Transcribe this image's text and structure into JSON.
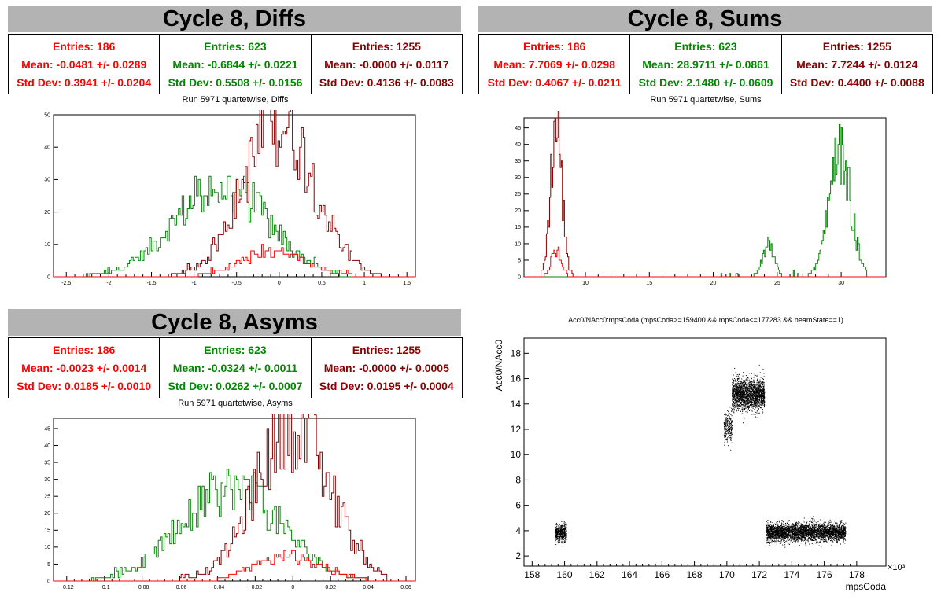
{
  "colors": {
    "red": "#ff0000",
    "green": "#008800",
    "darkred": "#8b0000",
    "header": "#b3b3b3"
  },
  "panels": {
    "diffs": {
      "title": "Cycle 8, Diffs",
      "plot_title": "Run 5971 quartetwise, Diffs",
      "stats": [
        {
          "entries": "Entries: 186",
          "mean": "Mean: -0.0481 +/- 0.0289",
          "std": "Std Dev: 0.3941 +/- 0.0204",
          "color": "#ff0000"
        },
        {
          "entries": "Entries: 623",
          "mean": "Mean: -0.6844 +/- 0.0221",
          "std": "Std Dev: 0.5508 +/- 0.0156",
          "color": "#008800"
        },
        {
          "entries": "Entries: 1255",
          "mean": "Mean: -0.0000 +/- 0.0117",
          "std": "Std Dev: 0.4136 +/- 0.0083",
          "color": "#8b0000"
        }
      ]
    },
    "sums": {
      "title": "Cycle 8, Sums",
      "plot_title": "Run 5971 quartetwise, Sums",
      "stats": [
        {
          "entries": "Entries: 186",
          "mean": "Mean: 7.7069 +/- 0.0298",
          "std": "Std Dev: 0.4067 +/- 0.0211",
          "color": "#ff0000"
        },
        {
          "entries": "Entries: 623",
          "mean": "Mean: 28.9711 +/- 0.0861",
          "std": "Std Dev: 2.1480 +/- 0.0609",
          "color": "#008800"
        },
        {
          "entries": "Entries: 1255",
          "mean": "Mean: 7.7244 +/- 0.0124",
          "std": "Std Dev: 0.4400 +/- 0.0088",
          "color": "#8b0000"
        }
      ]
    },
    "asyms": {
      "title": "Cycle 8, Asyms",
      "plot_title": "Run 5971 quartetwise, Asyms",
      "stats": [
        {
          "entries": "Entries: 186",
          "mean": "Mean: -0.0023 +/- 0.0014",
          "std": "Std Dev: 0.0185 +/- 0.0010",
          "color": "#ff0000"
        },
        {
          "entries": "Entries: 623",
          "mean": "Mean: -0.0324 +/- 0.0011",
          "std": "Std Dev: 0.0262 +/- 0.0007",
          "color": "#008800"
        },
        {
          "entries": "Entries: 1255",
          "mean": "Mean: -0.0000 +/- 0.0005",
          "std": "Std Dev: 0.0195 +/- 0.0004",
          "color": "#8b0000"
        }
      ]
    },
    "scatter": {
      "plot_title": "Acc0/NAcc0:mpsCoda (mpsCoda>=159400 && mpsCoda<=177283 && beamState==1)"
    }
  },
  "chart_data": [
    {
      "type": "histogram",
      "name": "diffs",
      "xlim": [
        -2.65,
        1.6
      ],
      "ylim": [
        0,
        50
      ],
      "xticks": [
        -2.5,
        -2,
        -1.5,
        -1,
        -0.5,
        0,
        0.5,
        1,
        1.5
      ],
      "xtick_labels": [
        "-2.5",
        "-2",
        "-1.5",
        "-1",
        "-0.5",
        "0",
        "0.5",
        "1",
        "1.5"
      ],
      "yticks": [
        0,
        10,
        20,
        30,
        40,
        50
      ],
      "ytick_labels": [
        "0",
        "10",
        "20",
        "30",
        "40",
        "50"
      ],
      "series": [
        {
          "color": "#008800",
          "mean": -0.6844,
          "std": 0.5508,
          "peak": 28,
          "range": [
            -2.5,
            0.7
          ]
        },
        {
          "color": "#8b0000",
          "mean": 0.0,
          "std": 0.4136,
          "peak": 48,
          "range": [
            -1.3,
            1.2
          ]
        },
        {
          "color": "#ff0000",
          "mean": -0.0481,
          "std": 0.3941,
          "peak": 7,
          "range": [
            -1.0,
            0.9
          ]
        }
      ]
    },
    {
      "type": "histogram",
      "name": "sums",
      "xlim": [
        5.2,
        33.5
      ],
      "ylim": [
        0,
        48
      ],
      "xticks": [
        10,
        15,
        20,
        25,
        30
      ],
      "xtick_labels": [
        "10",
        "15",
        "20",
        "25",
        "30"
      ],
      "yticks": [
        0,
        5,
        10,
        15,
        20,
        25,
        30,
        35,
        40,
        45
      ],
      "ytick_labels": [
        "0",
        "5",
        "10",
        "15",
        "20",
        "25",
        "30",
        "35",
        "40",
        "45"
      ],
      "series": [
        {
          "color": "#008800",
          "peaks": [
            {
              "mean": 24.3,
              "std": 0.45,
              "peak": 10
            },
            {
              "mean": 29.9,
              "std": 0.85,
              "peak": 37
            }
          ],
          "range": [
            20,
            32
          ]
        },
        {
          "color": "#8b0000",
          "mean": 7.7244,
          "std": 0.44,
          "peak": 46,
          "range": [
            6.5,
            9.2
          ]
        },
        {
          "color": "#ff0000",
          "mean": 7.7069,
          "std": 0.4067,
          "peak": 8,
          "range": [
            6.8,
            8.6
          ]
        }
      ]
    },
    {
      "type": "histogram",
      "name": "asyms",
      "xlim": [
        -0.127,
        0.065
      ],
      "ylim": [
        0,
        48
      ],
      "xticks": [
        -0.12,
        -0.1,
        -0.08,
        -0.06,
        -0.04,
        -0.02,
        0,
        0.02,
        0.04,
        0.06
      ],
      "xtick_labels": [
        "−0.12",
        "−0.1",
        "−0.08",
        "−0.06",
        "−0.04",
        "−0.02",
        "0",
        "0.02",
        "0.04",
        "0.06"
      ],
      "yticks": [
        0,
        5,
        10,
        15,
        20,
        25,
        30,
        35,
        40,
        45
      ],
      "ytick_labels": [
        "0",
        "5",
        "10",
        "15",
        "20",
        "25",
        "30",
        "35",
        "40",
        "45"
      ],
      "series": [
        {
          "color": "#008800",
          "mean": -0.0324,
          "std": 0.0262,
          "peak": 27,
          "range": [
            -0.12,
            0.04
          ]
        },
        {
          "color": "#8b0000",
          "mean": 0.0,
          "std": 0.0195,
          "peak": 46,
          "range": [
            -0.06,
            0.05
          ]
        },
        {
          "color": "#ff0000",
          "mean": -0.0023,
          "std": 0.0185,
          "peak": 7,
          "range": [
            -0.04,
            0.04
          ]
        }
      ]
    },
    {
      "type": "scatter",
      "name": "acc0-vs-mpscoda",
      "xlabel": "mpsCoda",
      "ylabel": "Acc0/NAcc0",
      "x_exponent": "×10³",
      "xlim": [
        157.5,
        179.8
      ],
      "ylim": [
        1.2,
        19.2
      ],
      "xticks": [
        158,
        160,
        162,
        164,
        166,
        168,
        170,
        172,
        174,
        176,
        178
      ],
      "xtick_labels": [
        "158",
        "160",
        "162",
        "164",
        "166",
        "168",
        "170",
        "172",
        "174",
        "176",
        "178"
      ],
      "yticks": [
        2,
        4,
        6,
        8,
        10,
        12,
        14,
        16,
        18
      ],
      "ytick_labels": [
        "2",
        "4",
        "6",
        "8",
        "10",
        "12",
        "14",
        "16",
        "18"
      ],
      "clusters": [
        {
          "x": [
            159.4,
            160.1
          ],
          "ymean": 3.8,
          "ystd": 0.35,
          "n": 500
        },
        {
          "x": [
            169.8,
            170.3
          ],
          "ymean": 12.2,
          "ystd": 0.6,
          "n": 250
        },
        {
          "x": [
            170.3,
            172.3
          ],
          "ymean": 14.8,
          "ystd": 0.6,
          "n": 2000
        },
        {
          "x": [
            172.4,
            177.3
          ],
          "ymean": 3.9,
          "ystd": 0.35,
          "n": 3500
        }
      ]
    }
  ]
}
